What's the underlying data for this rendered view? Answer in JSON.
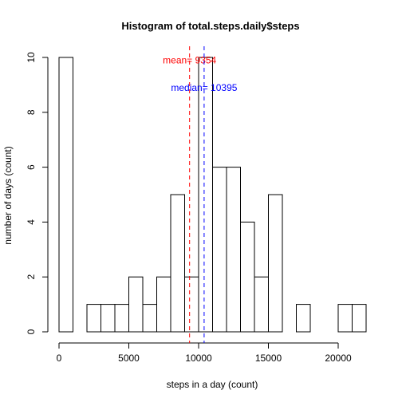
{
  "chart_data": {
    "type": "bar",
    "title": "Histogram of total.steps.daily$steps",
    "xlabel": "steps in a day (count)",
    "ylabel": "number of days (count)",
    "bin_width": 1000,
    "bins": [
      {
        "x0": 0,
        "x1": 1000,
        "count": 10
      },
      {
        "x0": 1000,
        "x1": 2000,
        "count": 0
      },
      {
        "x0": 2000,
        "x1": 3000,
        "count": 1
      },
      {
        "x0": 3000,
        "x1": 4000,
        "count": 1
      },
      {
        "x0": 4000,
        "x1": 5000,
        "count": 1
      },
      {
        "x0": 5000,
        "x1": 6000,
        "count": 2
      },
      {
        "x0": 6000,
        "x1": 7000,
        "count": 1
      },
      {
        "x0": 7000,
        "x1": 8000,
        "count": 2
      },
      {
        "x0": 8000,
        "x1": 9000,
        "count": 5
      },
      {
        "x0": 9000,
        "x1": 10000,
        "count": 2
      },
      {
        "x0": 10000,
        "x1": 11000,
        "count": 10
      },
      {
        "x0": 11000,
        "x1": 12000,
        "count": 6
      },
      {
        "x0": 12000,
        "x1": 13000,
        "count": 6
      },
      {
        "x0": 13000,
        "x1": 14000,
        "count": 4
      },
      {
        "x0": 14000,
        "x1": 15000,
        "count": 2
      },
      {
        "x0": 15000,
        "x1": 16000,
        "count": 5
      },
      {
        "x0": 16000,
        "x1": 17000,
        "count": 0
      },
      {
        "x0": 17000,
        "x1": 18000,
        "count": 1
      },
      {
        "x0": 18000,
        "x1": 19000,
        "count": 0
      },
      {
        "x0": 19000,
        "x1": 20000,
        "count": 0
      },
      {
        "x0": 20000,
        "x1": 21000,
        "count": 1
      },
      {
        "x0": 21000,
        "x1": 22000,
        "count": 1
      }
    ],
    "xlim": [
      0,
      22000
    ],
    "ylim": [
      0,
      10
    ],
    "x_ticks": [
      0,
      5000,
      10000,
      15000,
      20000
    ],
    "x_tick_labels": [
      "0",
      "5000",
      "10000",
      "15000",
      "20000"
    ],
    "y_ticks": [
      0,
      2,
      4,
      6,
      8,
      10
    ],
    "y_tick_labels": [
      "0",
      "2",
      "4",
      "6",
      "8",
      "10"
    ],
    "grid": false,
    "reference_lines": [
      {
        "name": "mean",
        "value": 9354,
        "label": "mean= 9354",
        "color": "#ff0000",
        "style": "dashed",
        "label_y": 9.9
      },
      {
        "name": "median",
        "value": 10395,
        "label": "median= 10395",
        "color": "#0000ff",
        "style": "dashed",
        "label_y": 8.9
      }
    ]
  }
}
